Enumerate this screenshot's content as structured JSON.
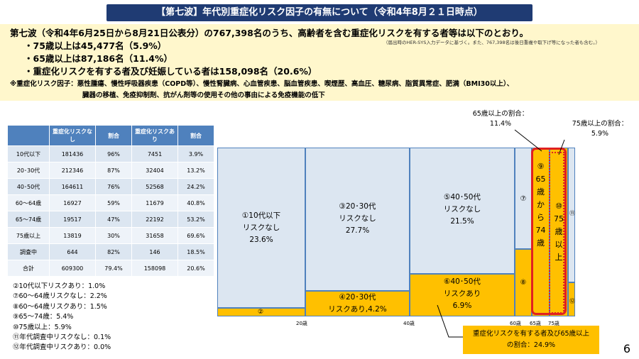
{
  "title": "【第七波】年代別重症化リスク因子の有無について（令和4年8月２１日時点）",
  "lead": "第七波（令和4年6月25日から8月21日公表分）の767,398名のうち、高齢者を含む重症化リスクを有する者等は以下のとおり。",
  "bullets": [
    "・75歳以上は45,477名（5.9%）",
    "・65歳以上は87,186名（11.4%）",
    "・重症化リスクを有する者及び妊娠している者は158,098名（20.6%）"
  ],
  "small_note": "（届出時のHER-SYS入力データに基づく。また、767,398名は後日重複や取下げ等になった者も含む。）",
  "definition_line1": "※重症化リスク因子：悪性腫瘍、慢性呼吸器疾患（COPD等）、慢性腎臓病、心血管疾患、脳血管疾患、喫煙歴、高血圧、糖尿病、脂質異常症、肥満（BMI30以上）、",
  "definition_line2": "臓器の移植、免疫抑制剤、抗がん剤等の使用その他の事由による免疫機能の低下",
  "table": {
    "headers": [
      "",
      "重症化リスクなし",
      "割合",
      "重症化リスクあり",
      "割合"
    ],
    "rows": [
      [
        "10代以下",
        "181436",
        "96%",
        "7451",
        "3.9%"
      ],
      [
        "20･30代",
        "212346",
        "87%",
        "32404",
        "13.2%"
      ],
      [
        "40･50代",
        "164611",
        "76%",
        "52568",
        "24.2%"
      ],
      [
        "60～64歳",
        "16927",
        "59%",
        "11679",
        "40.8%"
      ],
      [
        "65～74歳",
        "19517",
        "47%",
        "22192",
        "53.2%"
      ],
      [
        "75歳以上",
        "13819",
        "30%",
        "31658",
        "69.6%"
      ],
      [
        "調査中",
        "644",
        "82%",
        "146",
        "18.5%"
      ],
      [
        "合計",
        "609300",
        "79.4%",
        "158098",
        "20.6%"
      ]
    ]
  },
  "notes": [
    "②10代以下リスクあり：1.0%",
    "⑦60～64歳リスクなし：2.2%",
    "⑧60～64歳リスクあり：1.5%",
    "⑨65～74歳：5.4%",
    "⑩75歳以上：5.9%",
    "⑪年代調査中リスクなし：0.1%",
    "⑫年代調査中リスクあり：0.0%"
  ],
  "mosaic": {
    "c1": {
      "line1": "①10代以下",
      "line2": "リスクなし",
      "line3": "23.6%"
    },
    "c2": "②",
    "c3": {
      "line1": "③20･30代",
      "line2": "リスクなし",
      "line3": "27.7%"
    },
    "c4": {
      "line1": "④20･30代",
      "line2": "リスクあり,4.2%"
    },
    "c5": {
      "line1": "⑤40･50代",
      "line2": "リスクなし",
      "line3": "21.5%"
    },
    "c6": {
      "line1": "⑥40･50代",
      "line2": "リスクあり",
      "line3": "6.9%"
    },
    "c7": "⑦",
    "c8": "⑧",
    "c9": [
      "⑨",
      "65",
      "歳",
      "か",
      "ら",
      "74",
      "歳"
    ],
    "c10": [
      "⑩",
      "75",
      "歳",
      "以",
      "上"
    ],
    "c11": "⑪",
    "c12": "⑫"
  },
  "axis": {
    "a20": "20歳",
    "a40": "40歳",
    "a60": "60歳",
    "a65": "65歳",
    "a75": "75歳"
  },
  "callout65": {
    "line1": "65歳以上の割合：",
    "line2": "11.4%"
  },
  "callout75": {
    "line1": "75歳以上の割合：",
    "line2": "5.9%"
  },
  "callout_risk": {
    "line1": "重症化リスクを有する者及び65歳以上",
    "line2": "の割合：24.9%"
  },
  "page_number": "6",
  "colors": {
    "header": "#1f3b73",
    "table_header": "#4f81bd",
    "risk": "#ffc000",
    "no_risk": "#dce6f1",
    "highlight": "#e02020"
  }
}
